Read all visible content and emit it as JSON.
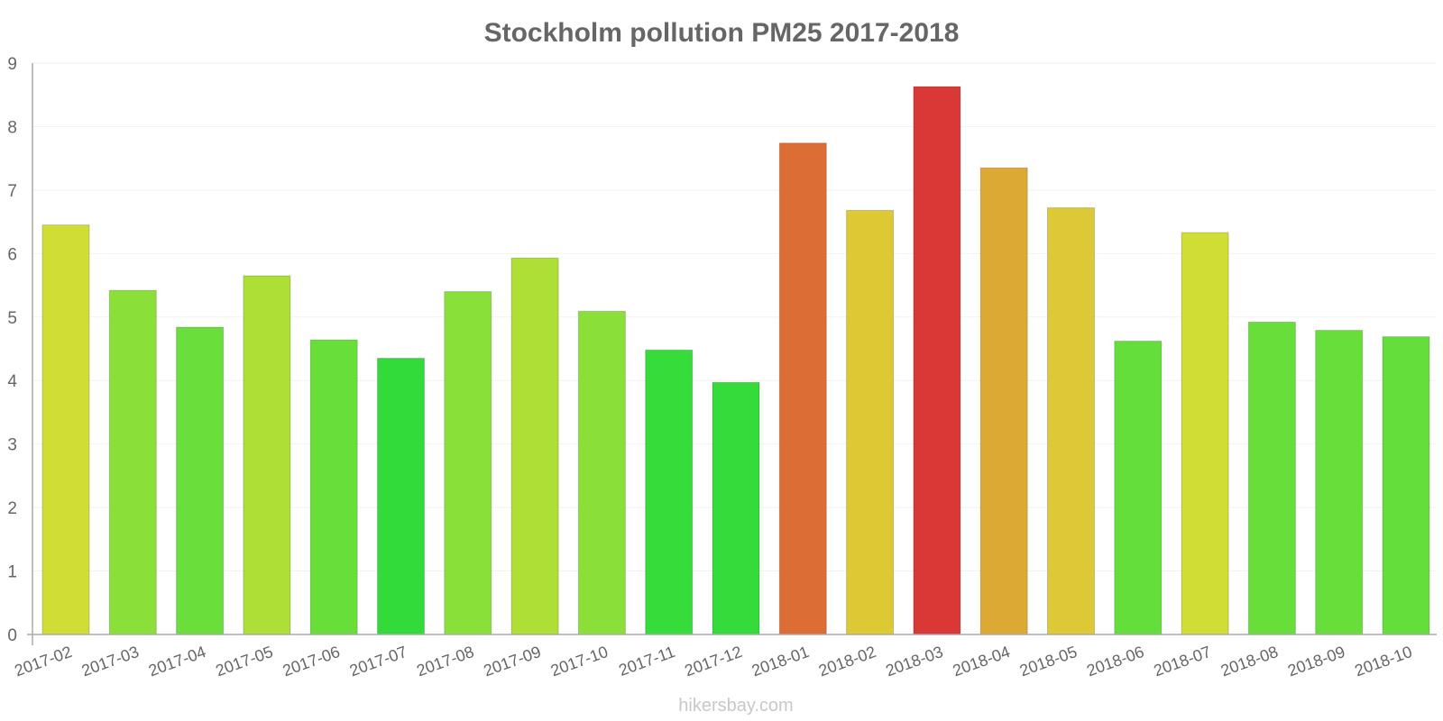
{
  "chart_data": {
    "type": "bar",
    "title": "Stockholm pollution PM25 2017-2018",
    "xlabel": "",
    "ylabel": "",
    "ylim": [
      0,
      9
    ],
    "yticks": [
      "0",
      "1",
      "2",
      "3",
      "4",
      "5",
      "6",
      "7",
      "8",
      "9"
    ],
    "grid": true,
    "legend": "none",
    "categories": [
      "2017-02",
      "2017-03",
      "2017-04",
      "2017-05",
      "2017-06",
      "2017-07",
      "2017-08",
      "2017-09",
      "2017-10",
      "2017-11",
      "2017-12",
      "2018-01",
      "2018-02",
      "2018-03",
      "2018-04",
      "2018-05",
      "2018-06",
      "2018-07",
      "2018-08",
      "2018-09",
      "2018-10"
    ],
    "values": [
      6.45,
      5.42,
      4.84,
      5.65,
      4.64,
      4.35,
      5.4,
      5.93,
      5.09,
      4.48,
      3.97,
      7.74,
      6.68,
      8.63,
      7.35,
      6.72,
      4.62,
      6.33,
      4.92,
      4.79,
      4.69
    ],
    "bar_colors": [
      "#cfdd34",
      "#8ae038",
      "#6ade3a",
      "#addf36",
      "#68de3a",
      "#33db3a",
      "#88e039",
      "#addf35",
      "#8ae038",
      "#35dc3a",
      "#34db3a",
      "#dc6e35",
      "#dcc934",
      "#da3737",
      "#dca935",
      "#dcc935",
      "#64de3a",
      "#cfdd34",
      "#68de3a",
      "#68de3a",
      "#64de3a"
    ]
  },
  "watermark": "hikersbay.com"
}
